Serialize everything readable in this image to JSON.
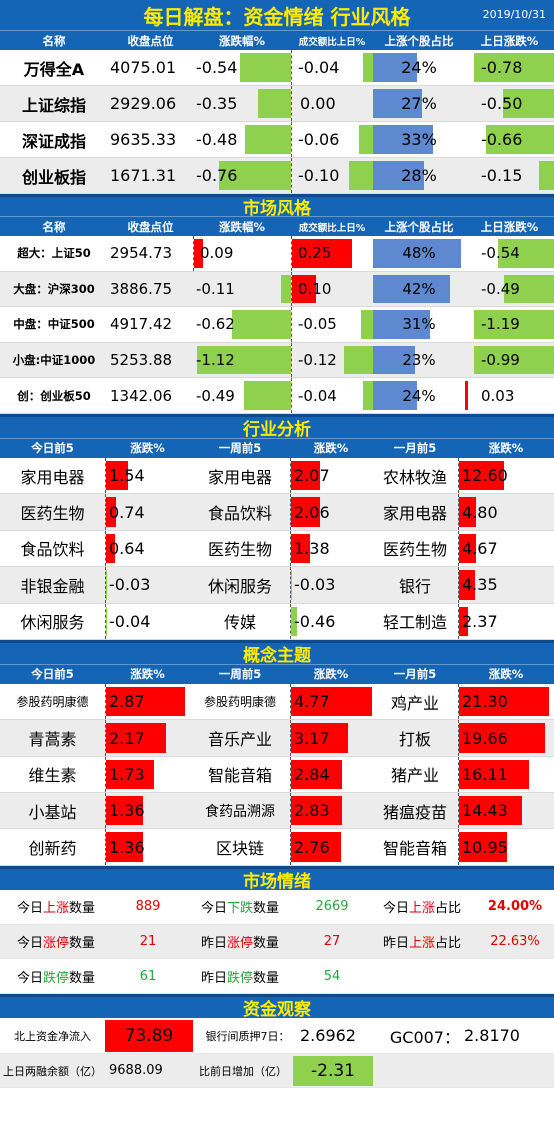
{
  "header": {
    "title": "每日解盘：资金情绪 行业风格",
    "date": "2019/10/31"
  },
  "columns": [
    "名称",
    "收盘点位",
    "涨跌幅%",
    "成交额比上日%",
    "上涨个股占比",
    "上日涨跌%"
  ],
  "indices": [
    {
      "name": "万得全A",
      "close": "4075.01",
      "chg": -0.54,
      "vol": -0.04,
      "up": 24,
      "prev": -0.78
    },
    {
      "name": "上证综指",
      "close": "2929.06",
      "chg": -0.35,
      "vol": 0.0,
      "up": 27,
      "prev": -0.5
    },
    {
      "name": "深证成指",
      "close": "9635.33",
      "chg": -0.48,
      "vol": -0.06,
      "up": 33,
      "prev": -0.66
    },
    {
      "name": "创业板指",
      "close": "1671.31",
      "chg": -0.76,
      "vol": -0.1,
      "up": 28,
      "prev": -0.15
    }
  ],
  "style_section": {
    "title": "市场风格",
    "rows": [
      {
        "name": "超大：上证50",
        "close": "2954.73",
        "chg": 0.09,
        "vol": 0.25,
        "up": 48,
        "prev": -0.54
      },
      {
        "name": "大盘：沪深300",
        "close": "3886.75",
        "chg": -0.11,
        "vol": 0.1,
        "up": 42,
        "prev": -0.49
      },
      {
        "name": "中盘：中证500",
        "close": "4917.42",
        "chg": -0.62,
        "vol": -0.05,
        "up": 31,
        "prev": -1.19
      },
      {
        "name": "小盘:中证1000",
        "close": "5253.88",
        "chg": -1.12,
        "vol": -0.12,
        "up": 23,
        "prev": -0.99
      },
      {
        "name": "创：创业板50",
        "close": "1342.06",
        "chg": -0.49,
        "vol": -0.04,
        "up": 24,
        "prev": 0.03
      }
    ]
  },
  "industry": {
    "title": "行业分析",
    "headers": [
      "今日前5",
      "涨跌%",
      "一周前5",
      "涨跌%",
      "一月前5",
      "涨跌%"
    ],
    "rows": [
      [
        {
          "n": "家用电器",
          "v": 1.54
        },
        {
          "n": "家用电器",
          "v": 2.07
        },
        {
          "n": "农林牧渔",
          "v": 12.6
        }
      ],
      [
        {
          "n": "医药生物",
          "v": 0.74
        },
        {
          "n": "食品饮料",
          "v": 2.06
        },
        {
          "n": "家用电器",
          "v": 4.8
        }
      ],
      [
        {
          "n": "食品饮料",
          "v": 0.64
        },
        {
          "n": "医药生物",
          "v": 1.38
        },
        {
          "n": "医药生物",
          "v": 4.67
        }
      ],
      [
        {
          "n": "非银金融",
          "v": -0.03
        },
        {
          "n": "休闲服务",
          "v": -0.03
        },
        {
          "n": "银行",
          "v": 4.35
        }
      ],
      [
        {
          "n": "休闲服务",
          "v": -0.04
        },
        {
          "n": "传媒",
          "v": -0.46
        },
        {
          "n": "轻工制造",
          "v": 2.37
        }
      ]
    ]
  },
  "concept": {
    "title": "概念主题",
    "headers": [
      "今日前5",
      "涨跌%",
      "一周前5",
      "涨跌%",
      "一月前5",
      "涨跌%"
    ],
    "rows": [
      [
        {
          "n": "参股药明康德",
          "v": 2.87
        },
        {
          "n": "参股药明康德",
          "v": 4.77
        },
        {
          "n": "鸡产业",
          "v": 21.3
        }
      ],
      [
        {
          "n": "青蒿素",
          "v": 2.17
        },
        {
          "n": "音乐产业",
          "v": 3.17
        },
        {
          "n": "打板",
          "v": 19.66
        }
      ],
      [
        {
          "n": "维生素",
          "v": 1.73
        },
        {
          "n": "智能音箱",
          "v": 2.84
        },
        {
          "n": "猪产业",
          "v": 16.11
        }
      ],
      [
        {
          "n": "小基站",
          "v": 1.36
        },
        {
          "n": "食药品溯源",
          "v": 2.83
        },
        {
          "n": "猪瘟疫苗",
          "v": 14.43
        }
      ],
      [
        {
          "n": "创新药",
          "v": 1.36
        },
        {
          "n": "区块链",
          "v": 2.76
        },
        {
          "n": "智能音箱",
          "v": 10.95
        }
      ]
    ]
  },
  "sentiment": {
    "title": "市场情绪",
    "rows": [
      [
        {
          "a": "今日",
          "b": "上涨",
          "bc": "red",
          "c": "数量",
          "v": "889",
          "vc": "red"
        },
        {
          "a": "今日",
          "b": "下跌",
          "bc": "green",
          "c": "数量",
          "v": "2669",
          "vc": "green"
        },
        {
          "a": "今日",
          "b": "上涨",
          "bc": "red",
          "c": "占比",
          "v": "24.00%",
          "vc": "redb"
        }
      ],
      [
        {
          "a": "今日",
          "b": "涨停",
          "bc": "red",
          "c": "数量",
          "v": "21",
          "vc": "red"
        },
        {
          "a": "昨日",
          "b": "涨停",
          "bc": "red",
          "c": "数量",
          "v": "27",
          "vc": "red"
        },
        {
          "a": "昨日",
          "b": "上涨",
          "bc": "red",
          "c": "占比",
          "v": "22.63%",
          "vc": "red"
        }
      ],
      [
        {
          "a": "今日",
          "b": "跌停",
          "bc": "green",
          "c": "数量",
          "v": "61",
          "vc": "green"
        },
        {
          "a": "昨日",
          "b": "跌停",
          "bc": "green",
          "c": "数量",
          "v": "54",
          "vc": "green"
        }
      ]
    ]
  },
  "funds": {
    "title": "资金观察",
    "north_label": "北上资金净流入",
    "north_value": "73.89",
    "repo_label": "银行间质押7日：",
    "repo_value": "2.6962",
    "gc_label": "GC007：",
    "gc_value": "2.8170",
    "margin_label": "上日两融余额（亿）",
    "margin_value": "9688.09",
    "margin_chg_label": "比前日增加（亿）",
    "margin_chg_value": "-2.31"
  },
  "colors": {
    "blue": "#1565b7",
    "yellow": "#ffeb00",
    "green_bar": "#8fd14f",
    "red_bar": "#ff0000",
    "blue_bar": "#5e88cf"
  }
}
